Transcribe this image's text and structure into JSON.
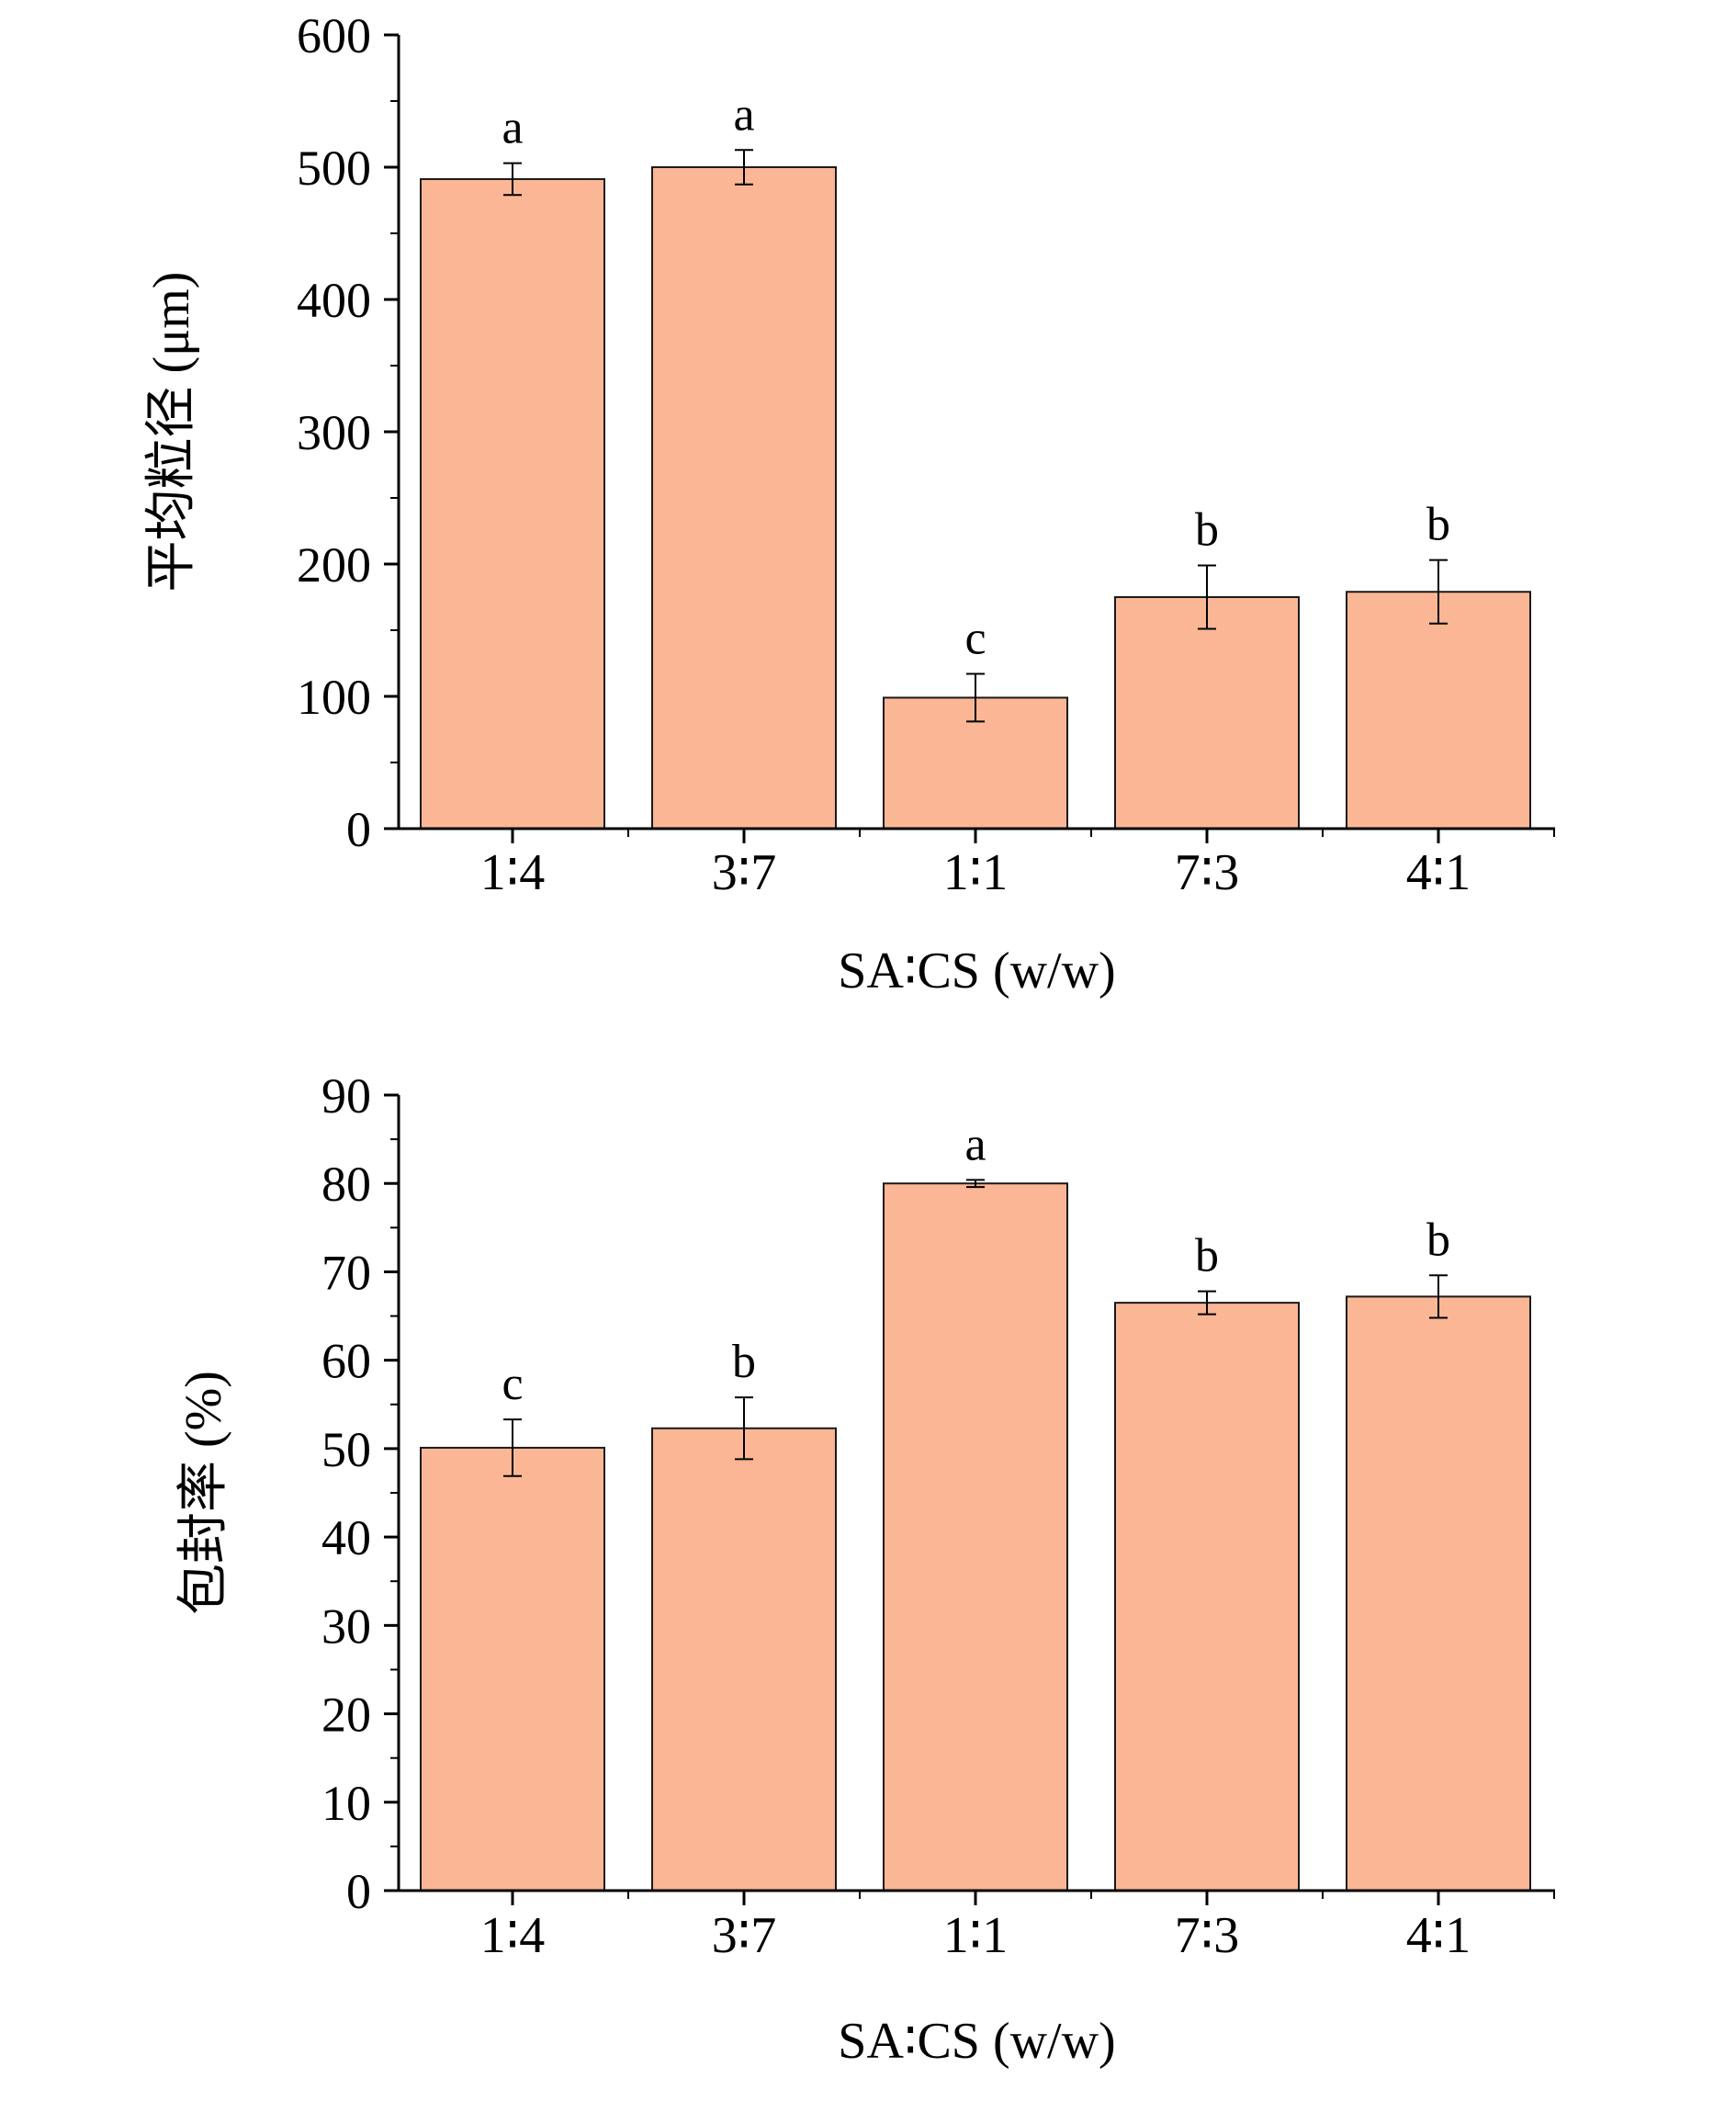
{
  "style": {
    "bar_fill": "#FBB795",
    "bar_stroke": "#1a1a1a",
    "axis_color": "#000000"
  },
  "chart_data": [
    {
      "type": "bar",
      "title": "",
      "xlabel": "SA∶CS (w/w)",
      "ylabel": "平均粒径 (μm)",
      "categories": [
        "1∶4",
        "3∶7",
        "1∶1",
        "7∶3",
        "4∶1"
      ],
      "values": [
        491,
        500,
        99,
        175,
        179
      ],
      "errors": [
        12,
        13,
        18,
        24,
        24
      ],
      "significance": [
        "a",
        "a",
        "c",
        "b",
        "b"
      ],
      "ylim": [
        0,
        600
      ],
      "yticks": [
        0,
        100,
        200,
        300,
        400,
        500,
        600
      ],
      "grid": false,
      "legend": "none"
    },
    {
      "type": "bar",
      "title": "",
      "xlabel": "SA∶CS (w/w)",
      "ylabel": "包封率 (%)",
      "categories": [
        "1∶4",
        "3∶7",
        "1∶1",
        "7∶3",
        "4∶1"
      ],
      "values": [
        50.1,
        52.3,
        80.0,
        66.5,
        67.2
      ],
      "errors": [
        3.2,
        3.5,
        0.4,
        1.3,
        2.4
      ],
      "significance": [
        "c",
        "b",
        "a",
        "b",
        "b"
      ],
      "ylim": [
        0,
        90
      ],
      "yticks": [
        0,
        10,
        20,
        30,
        40,
        50,
        60,
        70,
        80,
        90
      ],
      "grid": false,
      "legend": "none"
    }
  ]
}
